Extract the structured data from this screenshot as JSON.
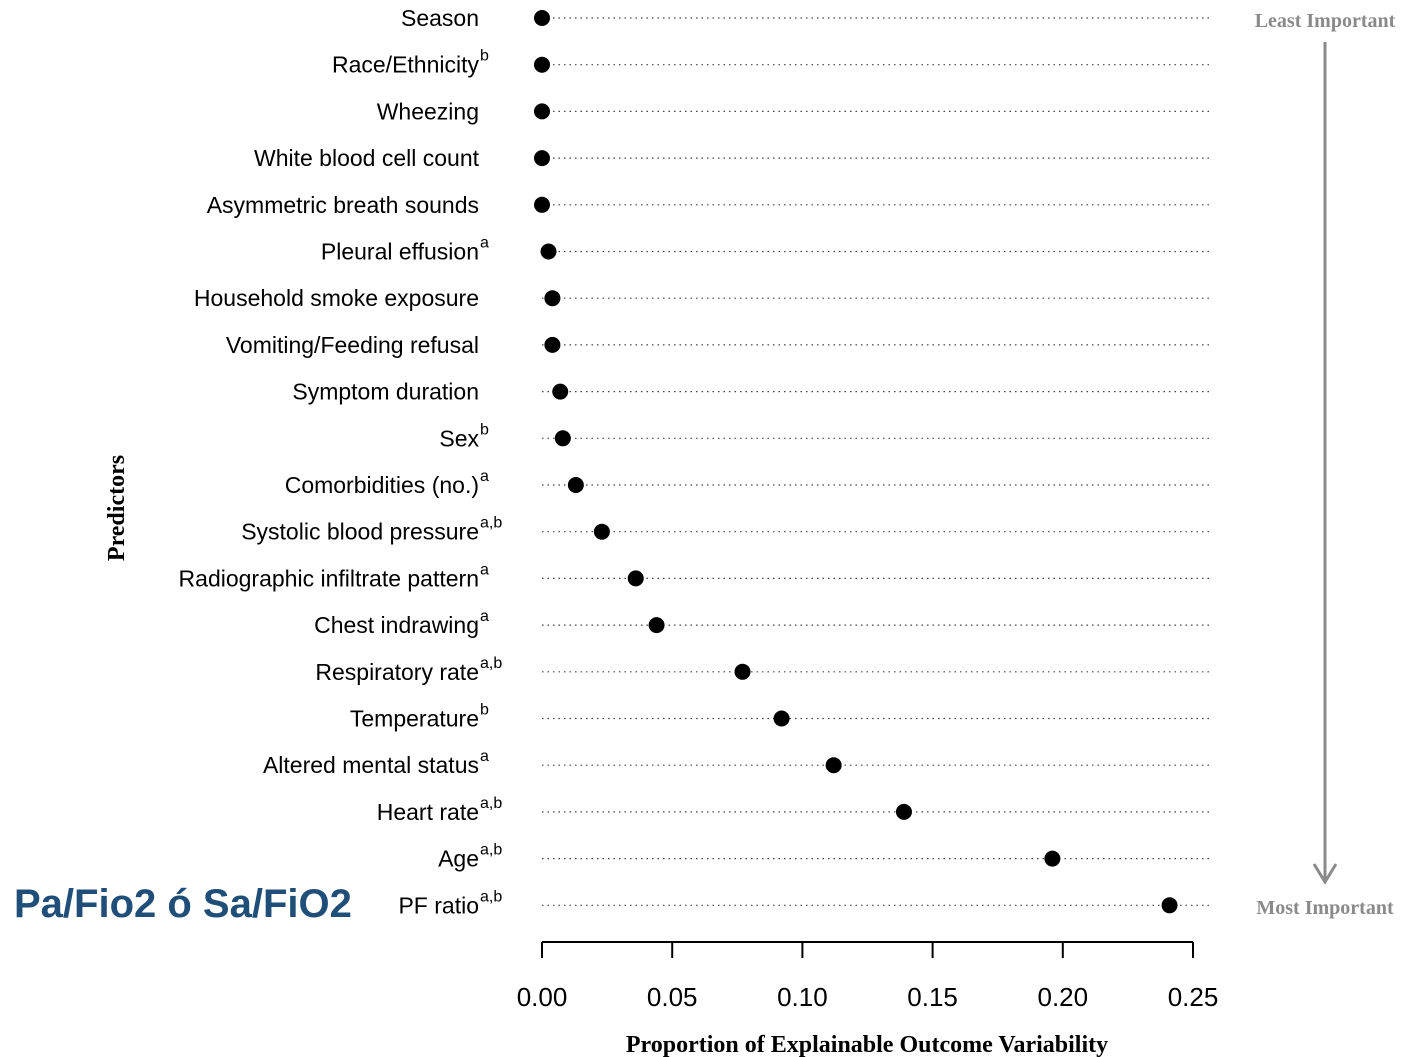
{
  "overlay_note": "Pa/Fio2 ó Sa/FiO2",
  "annotations": {
    "top": "Least Important",
    "bottom": "Most Important"
  },
  "chart_data": {
    "type": "scatter",
    "xlabel": "Proportion of Explainable Outcome Variability",
    "ylabel": "Predictors",
    "xlim": [
      0,
      0.25
    ],
    "xticks": [
      "0.00",
      "0.05",
      "0.10",
      "0.15",
      "0.20",
      "0.25"
    ],
    "xtick_values": [
      0,
      0.05,
      0.1,
      0.15,
      0.2,
      0.25
    ],
    "grid": "dotted horizontal guide per row",
    "points": [
      {
        "label": "Season",
        "sup": "",
        "value": 0.0
      },
      {
        "label": "Race/Ethnicity",
        "sup": "b",
        "value": 0.0
      },
      {
        "label": "Wheezing",
        "sup": "",
        "value": 0.0
      },
      {
        "label": "White blood cell count",
        "sup": "",
        "value": 0.0
      },
      {
        "label": "Asymmetric breath sounds",
        "sup": "",
        "value": 0.0
      },
      {
        "label": "Pleural effusion",
        "sup": "a",
        "value": 0.0025
      },
      {
        "label": "Household smoke exposure",
        "sup": "",
        "value": 0.004
      },
      {
        "label": "Vomiting/Feeding refusal",
        "sup": "",
        "value": 0.004
      },
      {
        "label": "Symptom duration",
        "sup": "",
        "value": 0.007
      },
      {
        "label": "Sex",
        "sup": "b",
        "value": 0.008
      },
      {
        "label": "Comorbidities (no.)",
        "sup": "a",
        "value": 0.013
      },
      {
        "label": "Systolic blood pressure",
        "sup": "a,b",
        "value": 0.023
      },
      {
        "label": "Radiographic infiltrate pattern",
        "sup": "a",
        "value": 0.036
      },
      {
        "label": "Chest indrawing",
        "sup": "a",
        "value": 0.044
      },
      {
        "label": "Respiratory rate",
        "sup": "a,b",
        "value": 0.077
      },
      {
        "label": "Temperature",
        "sup": "b",
        "value": 0.092
      },
      {
        "label": "Altered mental status",
        "sup": "a",
        "value": 0.112
      },
      {
        "label": "Heart rate",
        "sup": "a,b",
        "value": 0.139
      },
      {
        "label": "Age",
        "sup": "a,b",
        "value": 0.196
      },
      {
        "label": "PF ratio",
        "sup": "a,b",
        "value": 0.241
      }
    ]
  }
}
